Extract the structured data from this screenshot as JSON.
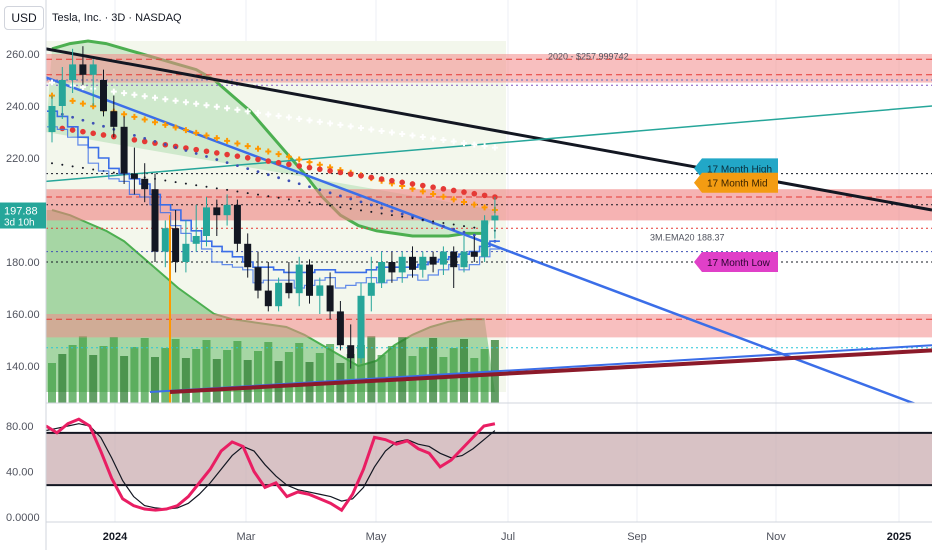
{
  "legend": {
    "title": "Tesla, Inc. · 3D · NASDAQ"
  },
  "currency_button": "USD",
  "price_tag": {
    "value": "197.88",
    "countdown": "3d 10h"
  },
  "chart_data": [
    {
      "type": "line",
      "panel": "price",
      "ylim": [
        130,
        265
      ],
      "ytick_labels": [
        "140.00",
        "160.00",
        "180.00",
        "200.00",
        "220.00",
        "240.00",
        "260.00"
      ],
      "yticks": [
        140,
        160,
        180,
        200,
        220,
        240,
        260
      ],
      "xtick_labels": [
        "2024",
        "Mar",
        "May",
        "Jul",
        "Sep",
        "Nov",
        "2025"
      ],
      "candles": [
        {
          "o": 230,
          "h": 244,
          "l": 226,
          "c": 240
        },
        {
          "o": 240,
          "h": 255,
          "l": 235,
          "c": 250
        },
        {
          "o": 250,
          "h": 262,
          "l": 245,
          "c": 256
        },
        {
          "o": 256,
          "h": 263,
          "l": 248,
          "c": 252
        },
        {
          "o": 252,
          "h": 258,
          "l": 240,
          "c": 256
        },
        {
          "o": 250,
          "h": 254,
          "l": 236,
          "c": 238
        },
        {
          "o": 238,
          "h": 244,
          "l": 228,
          "c": 232
        },
        {
          "o": 232,
          "h": 236,
          "l": 210,
          "c": 214
        },
        {
          "o": 214,
          "h": 224,
          "l": 206,
          "c": 212
        },
        {
          "o": 212,
          "h": 218,
          "l": 203,
          "c": 208
        },
        {
          "o": 208,
          "h": 214,
          "l": 180,
          "c": 184
        },
        {
          "o": 184,
          "h": 196,
          "l": 178,
          "c": 193
        },
        {
          "o": 193,
          "h": 200,
          "l": 176,
          "c": 180
        },
        {
          "o": 180,
          "h": 196,
          "l": 176,
          "c": 187
        },
        {
          "o": 187,
          "h": 202,
          "l": 184,
          "c": 190
        },
        {
          "o": 190,
          "h": 205,
          "l": 186,
          "c": 201
        },
        {
          "o": 201,
          "h": 204,
          "l": 190,
          "c": 198
        },
        {
          "o": 198,
          "h": 206,
          "l": 194,
          "c": 202
        },
        {
          "o": 202,
          "h": 204,
          "l": 184,
          "c": 187
        },
        {
          "o": 187,
          "h": 191,
          "l": 174,
          "c": 178
        },
        {
          "o": 178,
          "h": 184,
          "l": 166,
          "c": 169
        },
        {
          "o": 169,
          "h": 180,
          "l": 161,
          "c": 163
        },
        {
          "o": 163,
          "h": 174,
          "l": 161,
          "c": 172
        },
        {
          "o": 172,
          "h": 180,
          "l": 166,
          "c": 168
        },
        {
          "o": 168,
          "h": 182,
          "l": 163,
          "c": 179
        },
        {
          "o": 179,
          "h": 181,
          "l": 164,
          "c": 167
        },
        {
          "o": 167,
          "h": 174,
          "l": 160,
          "c": 171
        },
        {
          "o": 171,
          "h": 176,
          "l": 158,
          "c": 161
        },
        {
          "o": 161,
          "h": 165,
          "l": 146,
          "c": 148
        },
        {
          "o": 148,
          "h": 156,
          "l": 139,
          "c": 143
        },
        {
          "o": 143,
          "h": 172,
          "l": 141,
          "c": 167
        },
        {
          "o": 167,
          "h": 182,
          "l": 161,
          "c": 172
        },
        {
          "o": 172,
          "h": 184,
          "l": 170,
          "c": 180
        },
        {
          "o": 180,
          "h": 184,
          "l": 172,
          "c": 176
        },
        {
          "o": 176,
          "h": 184,
          "l": 172,
          "c": 182
        },
        {
          "o": 182,
          "h": 186,
          "l": 174,
          "c": 177
        },
        {
          "o": 177,
          "h": 184,
          "l": 174,
          "c": 182
        },
        {
          "o": 182,
          "h": 184,
          "l": 176,
          "c": 179
        },
        {
          "o": 179,
          "h": 186,
          "l": 175,
          "c": 184
        },
        {
          "o": 184,
          "h": 186,
          "l": 170,
          "c": 178
        },
        {
          "o": 178,
          "h": 190,
          "l": 176,
          "c": 184
        },
        {
          "o": 184,
          "h": 190,
          "l": 180,
          "c": 182
        },
        {
          "o": 182,
          "h": 198,
          "l": 180,
          "c": 196
        },
        {
          "o": 196,
          "h": 205,
          "l": 189,
          "c": 197.88
        }
      ],
      "annotations": [
        {
          "text": "2020 - $257.999742",
          "price": 259
        },
        {
          "text": "3M.EMA20 188.37",
          "price": 189.5
        }
      ],
      "tags": [
        {
          "text": "17 Month High",
          "price": 216,
          "color": "#22a7c7",
          "text_color": "#0b2e3c"
        },
        {
          "text": "17 Month Mid",
          "price": 210.5,
          "color": "#f39c12",
          "text_color": "#3a2300"
        },
        {
          "text": "17 Month Low",
          "price": 180,
          "color": "#e040c8",
          "text_color": "#2b0430"
        }
      ],
      "colors": {
        "up": "#26a69a",
        "down": "#131722",
        "ribbon": "#4caf50",
        "upper_band": "#4caf50"
      }
    },
    {
      "type": "line",
      "panel": "stochastic",
      "ylim": [
        0,
        90
      ],
      "ytick_labels": [
        "0.0000",
        "40.00",
        "80.00"
      ],
      "yticks": [
        0,
        40,
        80
      ],
      "series": [
        {
          "values": [
            80,
            74,
            82,
            86,
            80,
            58,
            34,
            16,
            10,
            7,
            6,
            7,
            10,
            18,
            30,
            42,
            58,
            66,
            62,
            40,
            26,
            30,
            18,
            22,
            20,
            16,
            12,
            6,
            20,
            42,
            70,
            68,
            64,
            67,
            60,
            56,
            44,
            50,
            60,
            70,
            80,
            82
          ]
        },
        {
          "values": [
            76,
            78,
            80,
            82,
            80,
            70,
            52,
            32,
            18,
            10,
            8,
            7,
            8,
            12,
            20,
            30,
            42,
            54,
            62,
            58,
            46,
            36,
            28,
            24,
            22,
            20,
            18,
            14,
            16,
            26,
            44,
            58,
            66,
            68,
            64,
            62,
            56,
            52,
            54,
            60,
            68,
            76
          ]
        }
      ],
      "band": [
        28,
        74
      ],
      "colors": {
        "k": "#e91e63",
        "d": "#131722"
      }
    }
  ]
}
